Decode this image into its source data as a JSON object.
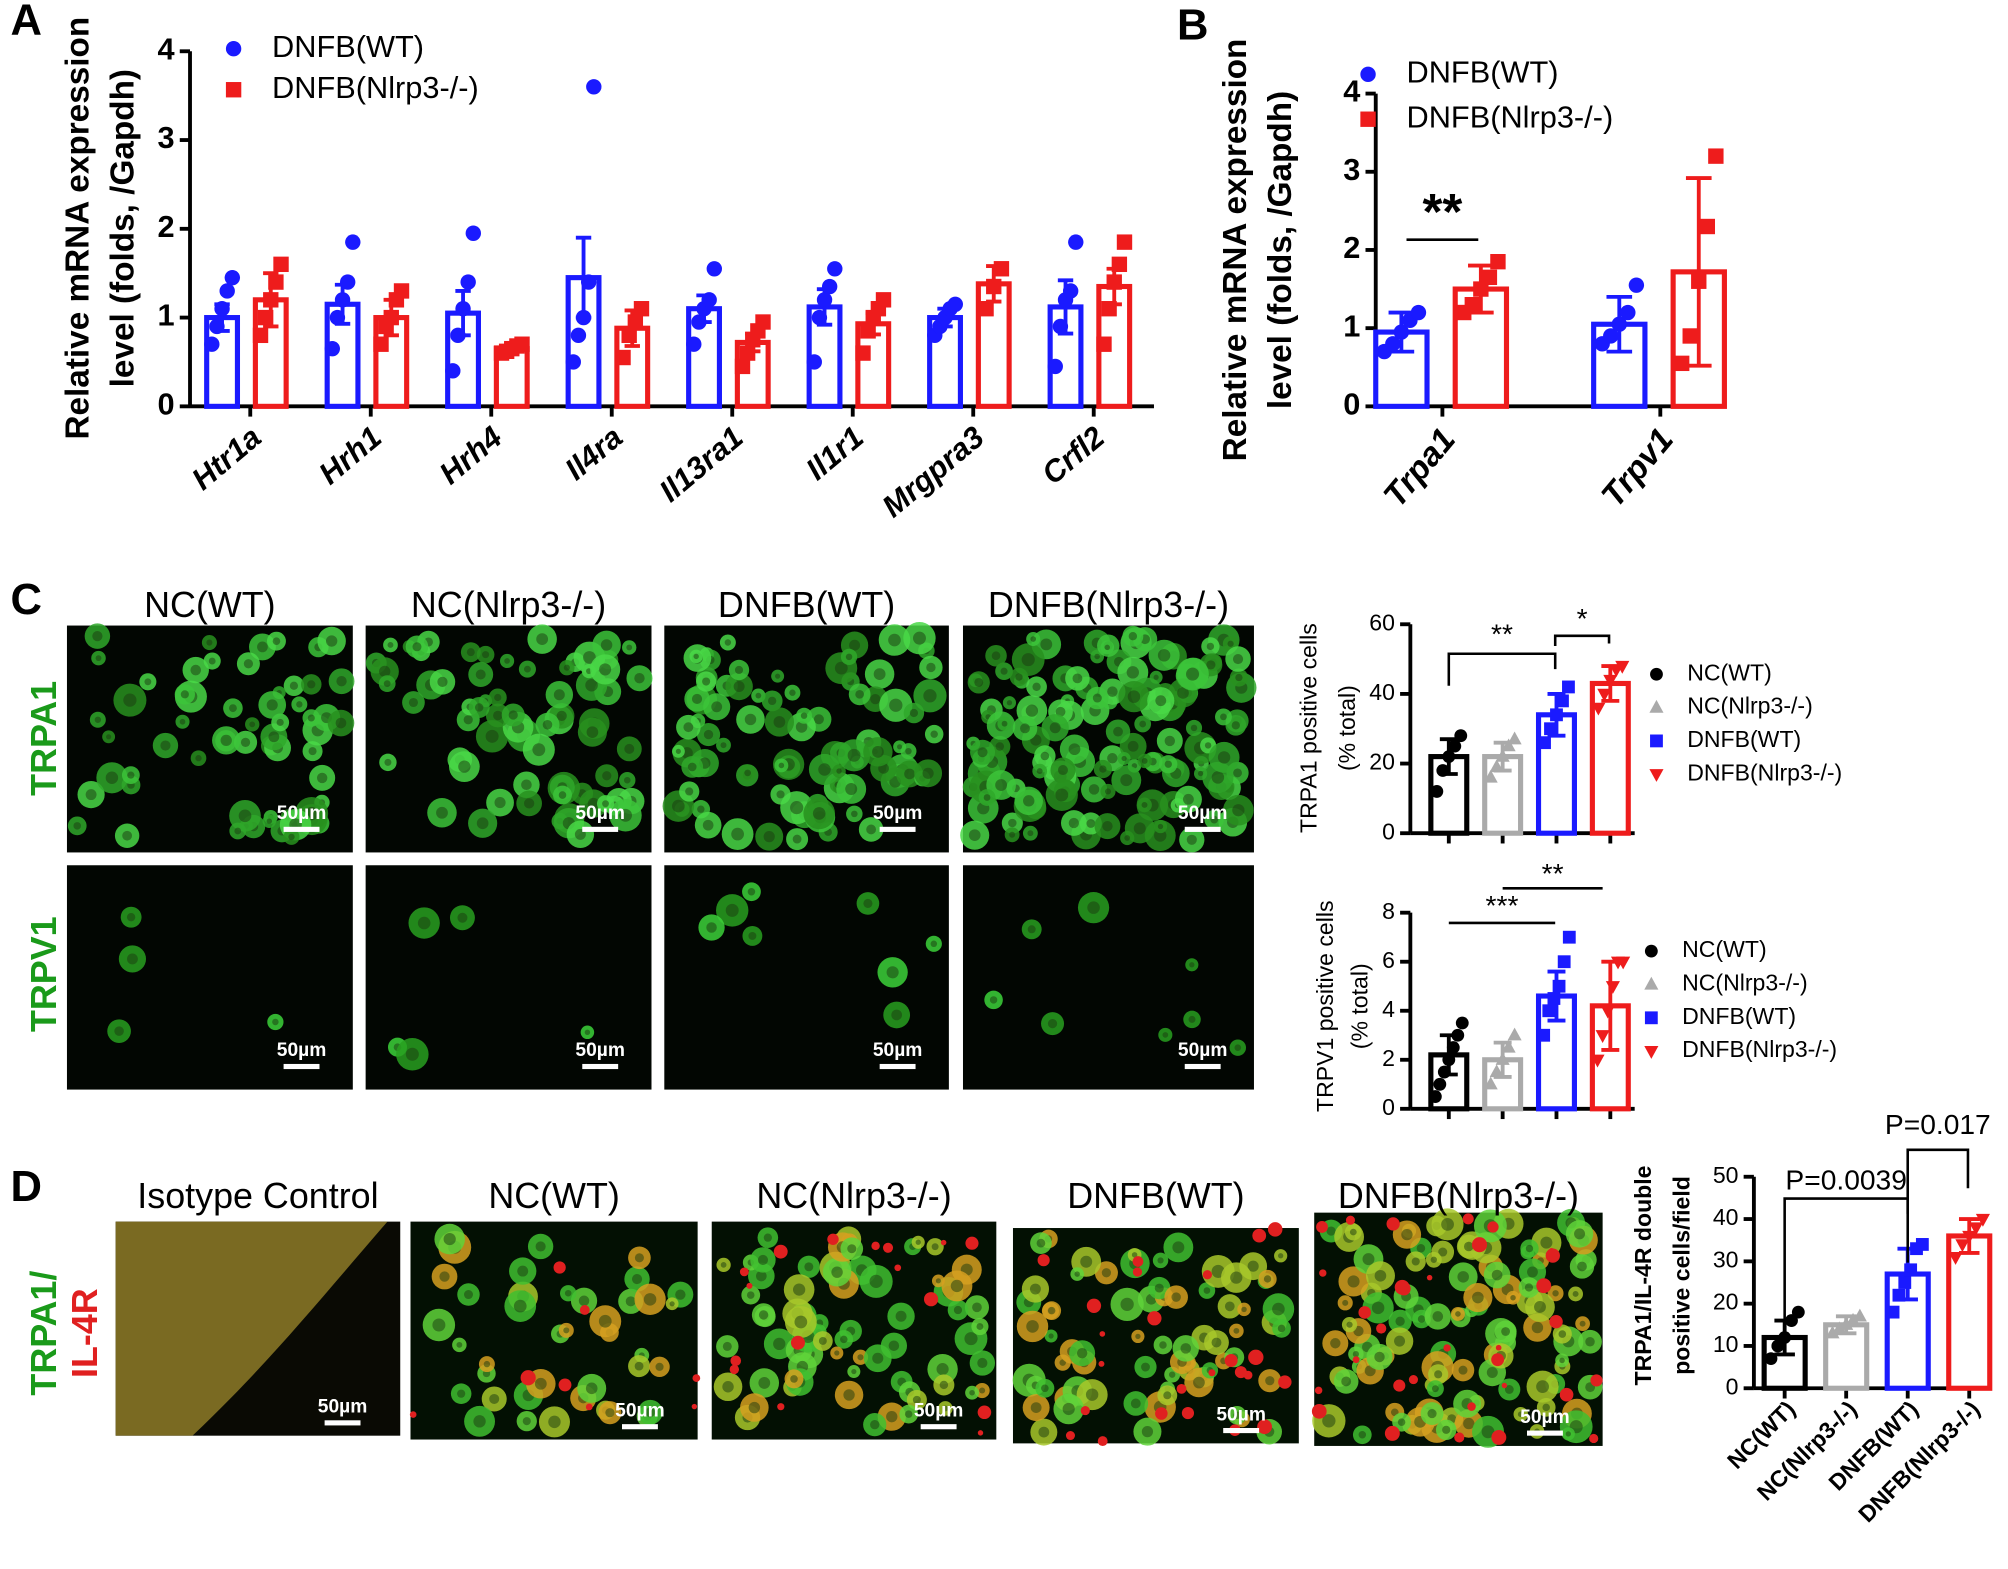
{
  "panel_labels": [
    "A",
    "B",
    "C",
    "D"
  ],
  "images": {
    "c_columns": [
      "NC(WT)",
      "NC(Nlrp3-/-)",
      "DNFB(WT)",
      "DNFB(Nlrp3-/-)"
    ],
    "c_rows": [
      "TRPA1",
      "TRPV1"
    ],
    "d_columns": [
      "Isotype Control",
      "NC(WT)",
      "NC(Nlrp3-/-)",
      "DNFB(WT)",
      "DNFB(Nlrp3-/-)"
    ],
    "d_row": [
      "TRPA1/",
      "IL-4R"
    ],
    "scale_bar": "50µm"
  },
  "chart_data": [
    {
      "type": "bar",
      "ylabel": [
        "Relative mRNA expression",
        "level (folds, /Gapdh)"
      ],
      "categories": [
        "Htr1a",
        "Hrh1",
        "Hrh4",
        "Il4ra",
        "Il13ra1",
        "Il1r1",
        "Mrgpra3",
        "Crfl2"
      ],
      "series": [
        {
          "name": "DNFB(WT)",
          "color": "#1a1aff",
          "marker": "circle",
          "values": [
            1.0,
            1.15,
            1.05,
            1.45,
            1.1,
            1.12,
            1.0,
            1.12
          ],
          "errors": [
            0.15,
            0.22,
            0.25,
            0.45,
            0.15,
            0.2,
            0.1,
            0.3
          ],
          "points": [
            [
              0.7,
              0.9,
              1.1,
              1.3,
              1.45
            ],
            [
              0.65,
              1.0,
              1.2,
              1.4,
              1.85
            ],
            [
              0.4,
              0.8,
              1.1,
              1.4,
              1.95
            ],
            [
              0.5,
              0.8,
              1.0,
              1.4,
              3.6
            ],
            [
              0.7,
              0.95,
              1.1,
              1.2,
              1.55
            ],
            [
              0.5,
              1.0,
              1.2,
              1.35,
              1.55
            ],
            [
              0.8,
              0.9,
              1.0,
              1.1,
              1.15
            ],
            [
              0.45,
              0.9,
              1.2,
              1.3,
              1.85
            ]
          ]
        },
        {
          "name": "DNFB(Nlrp3-/-)",
          "color": "#ee1c1c",
          "marker": "square",
          "values": [
            1.2,
            1.0,
            0.65,
            0.88,
            0.72,
            0.93,
            1.38,
            1.35
          ],
          "errors": [
            0.3,
            0.2,
            0.05,
            0.2,
            0.1,
            0.12,
            0.2,
            0.2
          ],
          "points": [
            [
              0.8,
              1.0,
              1.2,
              1.4,
              1.6
            ],
            [
              0.7,
              0.9,
              1.0,
              1.2,
              1.3
            ],
            [
              0.6,
              0.62,
              0.65,
              0.68,
              0.7
            ],
            [
              0.55,
              0.8,
              0.95,
              1.1
            ],
            [
              0.45,
              0.6,
              0.75,
              0.85,
              0.95
            ],
            [
              0.6,
              0.85,
              1.0,
              1.1,
              1.2
            ],
            [
              1.1,
              1.35,
              1.55
            ],
            [
              0.7,
              1.1,
              1.4,
              1.6,
              1.85
            ]
          ]
        }
      ],
      "ylim": [
        0,
        4
      ],
      "yticks": [
        0,
        1,
        2,
        3,
        4
      ],
      "legend": "upper left",
      "annotations": []
    },
    {
      "type": "bar",
      "ylabel": [
        "Relative mRNA expression",
        "level (folds, /Gapdh)"
      ],
      "categories": [
        "Trpa1",
        "Trpv1"
      ],
      "series": [
        {
          "name": "DNFB(WT)",
          "color": "#1a1aff",
          "marker": "circle",
          "values": [
            0.95,
            1.05
          ],
          "errors": [
            0.25,
            0.35
          ],
          "points": [
            [
              0.7,
              0.8,
              0.95,
              1.1,
              1.2
            ],
            [
              0.8,
              0.9,
              1.05,
              1.2,
              1.55
            ]
          ]
        },
        {
          "name": "DNFB(Nlrp3-/-)",
          "color": "#ee1c1c",
          "marker": "square",
          "values": [
            1.5,
            1.72
          ],
          "errors": [
            0.3,
            1.2
          ],
          "points": [
            [
              1.2,
              1.3,
              1.5,
              1.65,
              1.85
            ],
            [
              0.55,
              0.9,
              1.6,
              2.3,
              3.2
            ]
          ]
        }
      ],
      "ylim": [
        0,
        4
      ],
      "yticks": [
        0,
        1,
        2,
        3,
        4
      ],
      "legend": "upper left",
      "annotations": [
        "**"
      ]
    },
    {
      "type": "bar",
      "ylabel": [
        "TRPA1 positive cells",
        "(% total)"
      ],
      "categories": [
        "NC(WT)",
        "NC(Nlrp3-/-)",
        "DNFB(WT)",
        "DNFB(Nlrp3-/-)"
      ],
      "colors": [
        "#000000",
        "#aaaaaa",
        "#1a1aff",
        "#ee1c1c"
      ],
      "markers": [
        "circle",
        "triangle",
        "square",
        "triangle-down"
      ],
      "values": [
        22,
        22,
        34,
        43
      ],
      "errors": [
        5,
        4,
        6,
        5
      ],
      "points": [
        [
          12,
          18,
          22,
          25,
          28
        ],
        [
          16,
          19,
          22,
          25,
          27
        ],
        [
          26,
          30,
          34,
          38,
          42
        ],
        [
          36,
          40,
          44,
          47,
          48
        ]
      ],
      "ylim": [
        0,
        60
      ],
      "yticks": [
        0,
        20,
        40,
        60
      ],
      "legend": "right",
      "annotations": [
        "**",
        "*"
      ]
    },
    {
      "type": "bar",
      "ylabel": [
        "TRPV1 positive cells",
        "(% total)"
      ],
      "categories": [
        "NC(WT)",
        "NC(Nlrp3-/-)",
        "DNFB(WT)",
        "DNFB(Nlrp3-/-)"
      ],
      "colors": [
        "#000000",
        "#aaaaaa",
        "#1a1aff",
        "#ee1c1c"
      ],
      "markers": [
        "circle",
        "triangle",
        "square",
        "triangle-down"
      ],
      "values": [
        2.2,
        2.0,
        4.6,
        4.2
      ],
      "errors": [
        0.8,
        0.7,
        1.0,
        1.8
      ],
      "points": [
        [
          0.5,
          1,
          1.5,
          2,
          2.5,
          3,
          3.5
        ],
        [
          1,
          1.5,
          2,
          2.5,
          3
        ],
        [
          3,
          4,
          4.5,
          5,
          6,
          7
        ],
        [
          2,
          3,
          4,
          5,
          6,
          6
        ]
      ],
      "ylim": [
        0,
        8
      ],
      "yticks": [
        0,
        2,
        4,
        6,
        8
      ],
      "legend": "right",
      "annotations": [
        "***",
        "**"
      ]
    },
    {
      "type": "bar",
      "ylabel": [
        "TRPA1/IL-4R double",
        "positive cells/field"
      ],
      "categories": [
        "NC(WT)",
        "NC(Nlrp3-/-)",
        "DNFB(WT)",
        "DNFB(Nlrp3-/-)"
      ],
      "colors": [
        "#000000",
        "#aaaaaa",
        "#1a1aff",
        "#ee1c1c"
      ],
      "markers": [
        "circle",
        "triangle",
        "square",
        "triangle-down"
      ],
      "values": [
        12,
        15,
        27,
        36
      ],
      "errors": [
        4,
        2,
        6,
        4
      ],
      "points": [
        [
          7,
          10,
          12,
          16,
          18
        ],
        [
          13,
          14,
          15,
          16,
          17
        ],
        [
          18,
          22,
          25,
          28,
          33,
          34
        ],
        [
          31,
          34,
          36,
          38,
          40
        ]
      ],
      "ylim": [
        0,
        50
      ],
      "yticks": [
        0,
        10,
        20,
        30,
        40,
        50
      ],
      "annotations": [
        "P=0.0039",
        "P=0.017"
      ]
    }
  ]
}
